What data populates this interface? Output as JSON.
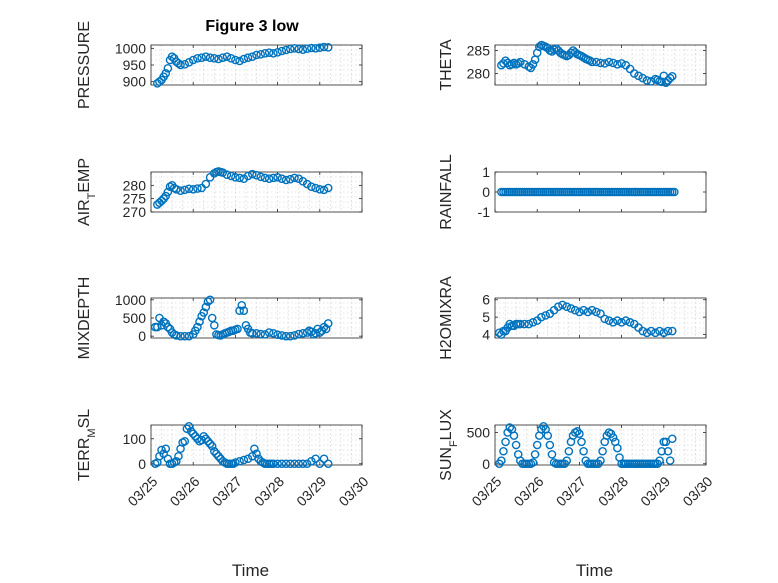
{
  "figure": {
    "title": "Figure 3 low",
    "marker_color": "#0072BD"
  },
  "chart_data": [
    {
      "type": "scatter",
      "id": "pressure",
      "ylabel": "PRESSURE",
      "xlabel": "",
      "xlim": [
        "03/25",
        "03/30"
      ],
      "ylim": [
        890,
        1010
      ],
      "yticks": [
        900,
        950,
        1000
      ],
      "xticklabels_visible": false,
      "grid": true,
      "x": [
        0.15,
        0.2,
        0.25,
        0.3,
        0.35,
        0.4,
        0.45,
        0.5,
        0.55,
        0.6,
        0.65,
        0.7,
        0.8,
        0.9,
        1.0,
        1.1,
        1.2,
        1.3,
        1.4,
        1.5,
        1.6,
        1.7,
        1.8,
        1.9,
        2.0,
        2.1,
        2.2,
        2.3,
        2.4,
        2.5,
        2.6,
        2.7,
        2.8,
        2.9,
        3.0,
        3.1,
        3.2,
        3.3,
        3.4,
        3.5,
        3.6,
        3.7,
        3.8,
        3.9,
        4.0,
        4.1,
        4.2
      ],
      "y": [
        895,
        900,
        905,
        915,
        925,
        940,
        965,
        975,
        970,
        960,
        955,
        950,
        952,
        958,
        965,
        970,
        972,
        975,
        972,
        970,
        968,
        972,
        975,
        970,
        965,
        962,
        968,
        972,
        975,
        980,
        982,
        985,
        987,
        985,
        988,
        992,
        995,
        998,
        1000,
        998,
        996,
        999,
        1001,
        1000,
        1002,
        1004,
        1003
      ]
    },
    {
      "type": "scatter",
      "id": "theta",
      "ylabel": "THETA",
      "xlabel": "",
      "xlim": [
        "03/25",
        "03/30"
      ],
      "ylim": [
        277.5,
        286.2
      ],
      "yticks": [
        280,
        285
      ],
      "xticklabels_visible": false,
      "grid": true,
      "x": [
        0.15,
        0.2,
        0.25,
        0.3,
        0.35,
        0.4,
        0.45,
        0.5,
        0.55,
        0.6,
        0.7,
        0.8,
        0.85,
        0.9,
        0.95,
        1.0,
        1.05,
        1.1,
        1.15,
        1.2,
        1.25,
        1.3,
        1.35,
        1.4,
        1.45,
        1.5,
        1.55,
        1.6,
        1.65,
        1.7,
        1.75,
        1.8,
        1.85,
        1.9,
        1.95,
        2.0,
        2.05,
        2.1,
        2.15,
        2.2,
        2.25,
        2.3,
        2.4,
        2.5,
        2.6,
        2.7,
        2.8,
        2.9,
        3.0,
        3.1,
        3.2,
        3.3,
        3.4,
        3.5,
        3.6,
        3.7,
        3.8,
        3.85,
        3.9,
        3.95,
        4.0,
        4.05,
        4.1,
        4.15,
        4.2
      ],
      "y": [
        281.8,
        282.2,
        282.8,
        282.3,
        281.8,
        282.0,
        282.3,
        282.0,
        282.2,
        282.5,
        282.0,
        281.5,
        281.2,
        282.0,
        283.0,
        284.5,
        285.8,
        286.2,
        286.0,
        285.8,
        285.5,
        285.0,
        284.8,
        285.2,
        285.4,
        285.0,
        284.5,
        284.2,
        284.0,
        283.8,
        284.0,
        284.5,
        285.0,
        284.6,
        284.2,
        284.0,
        283.8,
        283.5,
        283.2,
        283.0,
        282.8,
        282.5,
        282.5,
        282.3,
        282.2,
        282.5,
        282.3,
        282.0,
        282.2,
        281.8,
        281.0,
        280.0,
        279.5,
        279.0,
        278.5,
        278.3,
        278.8,
        278.6,
        278.3,
        278.2,
        279.5,
        278.0,
        278.5,
        279.0,
        279.4
      ]
    },
    {
      "type": "scatter",
      "id": "air_temp",
      "ylabel": "AIR_TEMP",
      "xlabel": "",
      "xlim": [
        "03/25",
        "03/30"
      ],
      "ylim": [
        270,
        285
      ],
      "yticks": [
        270,
        275,
        280
      ],
      "xticklabels_visible": false,
      "grid": true,
      "x": [
        0.15,
        0.2,
        0.25,
        0.3,
        0.35,
        0.4,
        0.45,
        0.5,
        0.55,
        0.6,
        0.7,
        0.8,
        0.9,
        1.0,
        1.1,
        1.2,
        1.3,
        1.4,
        1.5,
        1.55,
        1.6,
        1.65,
        1.7,
        1.8,
        1.9,
        2.0,
        2.1,
        2.2,
        2.3,
        2.4,
        2.5,
        2.6,
        2.7,
        2.8,
        2.9,
        3.0,
        3.1,
        3.2,
        3.3,
        3.4,
        3.5,
        3.6,
        3.7,
        3.8,
        3.9,
        4.0,
        4.1,
        4.2
      ],
      "y": [
        272.8,
        273.5,
        274.2,
        275.0,
        276.0,
        277.5,
        279.5,
        280.0,
        279.0,
        278.5,
        278.0,
        278.3,
        278.7,
        278.5,
        278.8,
        279.0,
        280.5,
        283.0,
        284.5,
        285.0,
        285.2,
        285.0,
        284.8,
        284.0,
        283.5,
        283.0,
        282.8,
        282.5,
        283.5,
        284.2,
        283.8,
        283.2,
        282.8,
        282.5,
        282.8,
        283.0,
        282.5,
        282.0,
        282.3,
        282.8,
        282.5,
        281.5,
        280.5,
        279.5,
        279.0,
        278.5,
        278.3,
        279.0
      ]
    },
    {
      "type": "scatter",
      "id": "rainfall",
      "ylabel": "RAINFALL",
      "xlabel": "",
      "xlim": [
        "03/25",
        "03/30"
      ],
      "ylim": [
        -1,
        1
      ],
      "yticks": [
        -1,
        0,
        1
      ],
      "xticklabels_visible": false,
      "grid": false,
      "x_range": [
        0.15,
        4.25
      ],
      "constant_y": 0
    },
    {
      "type": "scatter",
      "id": "mixdepth",
      "ylabel": "MIXDEPTH",
      "xlabel": "",
      "xlim": [
        "03/25",
        "03/30"
      ],
      "ylim": [
        -50,
        1050
      ],
      "yticks": [
        0,
        500,
        1000
      ],
      "xticklabels_visible": false,
      "grid": true,
      "x": [
        0.1,
        0.15,
        0.2,
        0.25,
        0.3,
        0.35,
        0.4,
        0.45,
        0.5,
        0.55,
        0.6,
        0.7,
        0.8,
        0.9,
        1.0,
        1.05,
        1.1,
        1.15,
        1.2,
        1.25,
        1.3,
        1.35,
        1.4,
        1.45,
        1.5,
        1.55,
        1.6,
        1.65,
        1.7,
        1.75,
        1.8,
        1.85,
        1.9,
        1.95,
        2.0,
        2.05,
        2.1,
        2.15,
        2.2,
        2.25,
        2.3,
        2.35,
        2.4,
        2.5,
        2.6,
        2.7,
        2.8,
        2.9,
        3.0,
        3.1,
        3.2,
        3.3,
        3.4,
        3.5,
        3.6,
        3.7,
        3.75,
        3.8,
        3.85,
        3.9,
        3.95,
        4.0,
        4.05,
        4.1,
        4.15,
        4.2
      ],
      "y": [
        250,
        250,
        500,
        300,
        400,
        350,
        250,
        200,
        100,
        50,
        20,
        0,
        0,
        0,
        50,
        150,
        250,
        400,
        550,
        650,
        800,
        950,
        1000,
        500,
        300,
        50,
        30,
        20,
        50,
        80,
        100,
        120,
        150,
        150,
        180,
        200,
        700,
        850,
        700,
        300,
        200,
        100,
        80,
        80,
        60,
        50,
        100,
        80,
        40,
        20,
        0,
        0,
        20,
        60,
        80,
        100,
        150,
        120,
        50,
        80,
        200,
        100,
        150,
        250,
        200,
        350
      ]
    },
    {
      "type": "scatter",
      "id": "h2omixra",
      "ylabel": "H2OMIXRA",
      "xlabel": "",
      "xlim": [
        "03/25",
        "03/30"
      ],
      "ylim": [
        3.8,
        6.1
      ],
      "yticks": [
        4,
        5,
        6
      ],
      "xticklabels_visible": false,
      "grid": true,
      "x": [
        0.1,
        0.15,
        0.2,
        0.25,
        0.3,
        0.35,
        0.4,
        0.45,
        0.5,
        0.55,
        0.6,
        0.7,
        0.8,
        0.9,
        1.0,
        1.1,
        1.2,
        1.3,
        1.4,
        1.5,
        1.6,
        1.7,
        1.8,
        1.9,
        2.0,
        2.1,
        2.2,
        2.3,
        2.4,
        2.5,
        2.6,
        2.7,
        2.8,
        2.9,
        3.0,
        3.1,
        3.2,
        3.3,
        3.4,
        3.5,
        3.6,
        3.7,
        3.8,
        3.9,
        4.0,
        4.1,
        4.2
      ],
      "y": [
        4.1,
        4.0,
        4.2,
        4.2,
        4.4,
        4.6,
        4.5,
        4.5,
        4.6,
        4.6,
        4.6,
        4.6,
        4.6,
        4.7,
        4.8,
        5.0,
        5.1,
        5.2,
        5.4,
        5.6,
        5.7,
        5.6,
        5.5,
        5.4,
        5.3,
        5.4,
        5.3,
        5.4,
        5.3,
        5.2,
        4.9,
        4.8,
        4.7,
        4.8,
        4.7,
        4.8,
        4.7,
        4.6,
        4.4,
        4.2,
        4.1,
        4.2,
        4.1,
        4.2,
        4.1,
        4.2,
        4.2
      ]
    },
    {
      "type": "scatter",
      "id": "terr_msl",
      "ylabel": "TERR_MSL",
      "xlabel": "Time",
      "xlim": [
        "03/25",
        "03/30"
      ],
      "ylim": [
        -5,
        155
      ],
      "yticks": [
        0,
        100
      ],
      "grid": true,
      "xticklabels": [
        "03/25",
        "03/26",
        "03/27",
        "03/28",
        "03/29",
        "03/30"
      ],
      "x": [
        0.1,
        0.15,
        0.2,
        0.25,
        0.3,
        0.35,
        0.4,
        0.45,
        0.5,
        0.55,
        0.6,
        0.65,
        0.7,
        0.75,
        0.8,
        0.85,
        0.9,
        0.95,
        1.0,
        1.05,
        1.1,
        1.15,
        1.2,
        1.25,
        1.3,
        1.35,
        1.4,
        1.45,
        1.5,
        1.55,
        1.6,
        1.65,
        1.7,
        1.75,
        1.8,
        1.85,
        1.9,
        1.95,
        2.0,
        2.1,
        2.2,
        2.3,
        2.4,
        2.45,
        2.5,
        2.55,
        2.6,
        2.65,
        2.7,
        2.75,
        2.8,
        2.85,
        2.9,
        3.0,
        3.1,
        3.2,
        3.3,
        3.4,
        3.5,
        3.6,
        3.7,
        3.8,
        3.9,
        4.0,
        4.1,
        4.2
      ],
      "y": [
        0,
        5,
        30,
        55,
        40,
        60,
        20,
        0,
        0,
        5,
        10,
        30,
        60,
        85,
        90,
        140,
        150,
        130,
        120,
        110,
        100,
        90,
        95,
        110,
        100,
        90,
        80,
        70,
        50,
        40,
        30,
        20,
        10,
        5,
        0,
        0,
        0,
        0,
        5,
        10,
        15,
        20,
        30,
        60,
        40,
        20,
        10,
        5,
        0,
        0,
        0,
        0,
        0,
        0,
        0,
        0,
        0,
        0,
        0,
        0,
        0,
        10,
        20,
        0,
        20,
        0
      ]
    },
    {
      "type": "scatter",
      "id": "sun_flux",
      "ylabel": "SUN_FLUX",
      "xlabel": "Time",
      "xlim": [
        "03/25",
        "03/30"
      ],
      "ylim": [
        -20,
        620
      ],
      "yticks": [
        0,
        500
      ],
      "grid": true,
      "xticklabels": [
        "03/25",
        "03/26",
        "03/27",
        "03/28",
        "03/29",
        "03/30"
      ],
      "x": [
        0.1,
        0.15,
        0.2,
        0.25,
        0.3,
        0.35,
        0.4,
        0.45,
        0.5,
        0.55,
        0.6,
        0.65,
        0.7,
        0.75,
        0.8,
        0.85,
        0.9,
        0.95,
        1.0,
        1.05,
        1.1,
        1.15,
        1.2,
        1.25,
        1.3,
        1.35,
        1.4,
        1.45,
        1.5,
        1.55,
        1.6,
        1.65,
        1.7,
        1.75,
        1.8,
        1.85,
        1.9,
        1.95,
        2.0,
        2.05,
        2.1,
        2.15,
        2.2,
        2.25,
        2.3,
        2.35,
        2.4,
        2.45,
        2.5,
        2.55,
        2.6,
        2.65,
        2.7,
        2.75,
        2.8,
        2.85,
        2.9,
        2.95,
        3.0,
        3.05,
        3.1,
        3.15,
        3.2,
        3.25,
        3.3,
        3.35,
        3.4,
        3.45,
        3.5,
        3.55,
        3.6,
        3.65,
        3.7,
        3.75,
        3.8,
        3.85,
        3.9,
        3.95,
        4.0,
        4.05,
        4.1,
        4.15,
        4.2
      ],
      "y": [
        0,
        50,
        200,
        350,
        500,
        580,
        550,
        450,
        300,
        150,
        50,
        0,
        0,
        0,
        0,
        0,
        20,
        150,
        300,
        450,
        550,
        600,
        550,
        450,
        300,
        150,
        20,
        0,
        0,
        0,
        0,
        0,
        50,
        200,
        350,
        450,
        500,
        520,
        480,
        350,
        200,
        50,
        0,
        0,
        0,
        0,
        0,
        0,
        50,
        200,
        350,
        450,
        500,
        480,
        420,
        350,
        250,
        100,
        0,
        0,
        0,
        0,
        0,
        0,
        0,
        0,
        0,
        0,
        0,
        0,
        0,
        0,
        0,
        0,
        0,
        0,
        50,
        200,
        350,
        350,
        200,
        50,
        400
      ]
    }
  ],
  "panel_meta": [
    {
      "id": "pressure",
      "ylabel_main": "PRESSURE",
      "ylabel_sub": "",
      "ylabel_tail": ""
    },
    {
      "id": "theta",
      "ylabel_main": "THETA",
      "ylabel_sub": "",
      "ylabel_tail": ""
    },
    {
      "id": "air_temp",
      "ylabel_main": "AIR",
      "ylabel_sub": "T",
      "ylabel_tail": "EMP"
    },
    {
      "id": "rainfall",
      "ylabel_main": "RAINFALL",
      "ylabel_sub": "",
      "ylabel_tail": ""
    },
    {
      "id": "mixdepth",
      "ylabel_main": "MIXDEPTH",
      "ylabel_sub": "",
      "ylabel_tail": ""
    },
    {
      "id": "h2omixra",
      "ylabel_main": "H2OMIXRA",
      "ylabel_sub": "",
      "ylabel_tail": ""
    },
    {
      "id": "terr_msl",
      "ylabel_main": "TERR",
      "ylabel_sub": "M",
      "ylabel_tail": "SL"
    },
    {
      "id": "sun_flux",
      "ylabel_main": "SUN",
      "ylabel_sub": "F",
      "ylabel_tail": "LUX"
    }
  ]
}
